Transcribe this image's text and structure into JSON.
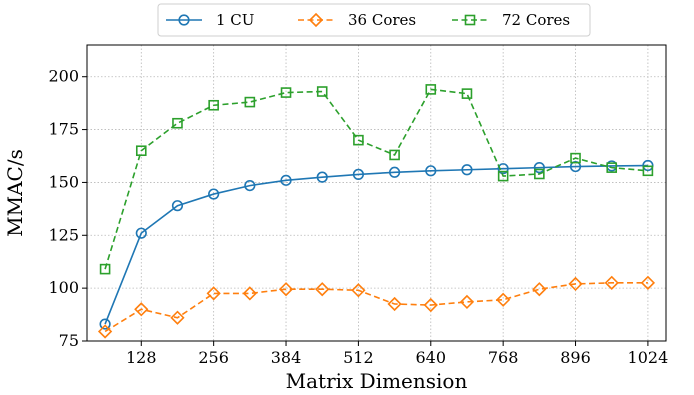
{
  "chart_data": {
    "type": "line",
    "xlabel": "Matrix Dimension",
    "ylabel": "MMAC/s",
    "xlim": [
      32,
      1056
    ],
    "ylim": [
      75,
      215
    ],
    "xticks": [
      128,
      256,
      384,
      512,
      640,
      768,
      896,
      1024
    ],
    "yticks": [
      75,
      100,
      125,
      150,
      175,
      200
    ],
    "grid": true,
    "legend": {
      "placement": "top-center-outside",
      "columns": 3
    },
    "x": [
      64,
      128,
      192,
      256,
      320,
      384,
      448,
      512,
      576,
      640,
      704,
      768,
      832,
      896,
      960,
      1024
    ],
    "series": [
      {
        "name": "1 CU",
        "color": "#1f77b4",
        "marker": "circle",
        "dashed": false,
        "values": [
          83,
          126,
          139,
          144.5,
          148.5,
          151,
          152.5,
          153.8,
          154.8,
          155.5,
          156,
          156.5,
          157,
          157.5,
          157.8,
          158
        ]
      },
      {
        "name": "36 Cores",
        "color": "#ff7f0e",
        "marker": "diamond",
        "dashed": true,
        "values": [
          79.5,
          90,
          86,
          97.5,
          97.5,
          99.5,
          99.5,
          99,
          92.5,
          92,
          93.5,
          94.5,
          99.5,
          102,
          102.5,
          102.5
        ]
      },
      {
        "name": "72 Cores",
        "color": "#2ca02c",
        "marker": "square",
        "dashed": true,
        "values": [
          109,
          165,
          178,
          186.5,
          188,
          192.5,
          193,
          170,
          163,
          194,
          192,
          153,
          154,
          161.5,
          157,
          155.5
        ]
      }
    ]
  }
}
